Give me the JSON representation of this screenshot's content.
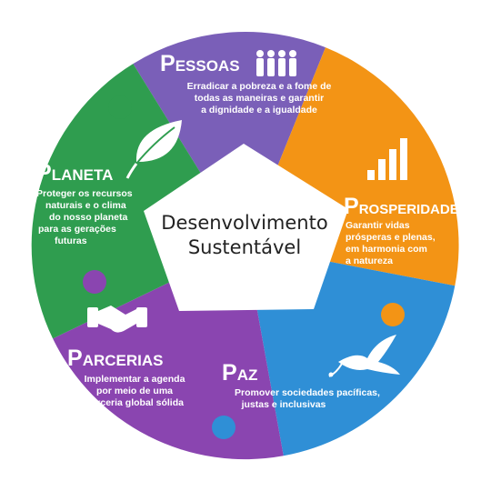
{
  "colors": {
    "pessoas": "#7a5fb8",
    "prosperidade": "#f39415",
    "paz": "#2f8fd6",
    "parcerias": "#8a45b0",
    "planeta": "#2f9d4f",
    "center": "#ffffff",
    "center_text": "#222222"
  },
  "center": {
    "line1": "Desenvolvimento",
    "line2": "Sustentável"
  },
  "segments": {
    "pessoas": {
      "title_initial": "P",
      "title_rest": "ESSOAS",
      "icon": "people-icon",
      "desc": [
        "Erradicar a pobreza e a fome de",
        "todas as maneiras e garantir",
        "a dignidade e a igualdade"
      ]
    },
    "prosperidade": {
      "title_initial": "P",
      "title_rest": "ROSPERIDADE",
      "icon": "bar-chart-icon",
      "desc": [
        "Garantir vidas",
        "prósperas e plenas,",
        "em harmonia com",
        "a natureza"
      ]
    },
    "paz": {
      "title_initial": "P",
      "title_rest": "AZ",
      "icon": "dove-icon",
      "desc": [
        "Promover sociedades pacíficas,",
        "justas e inclusivas"
      ]
    },
    "parcerias": {
      "title_initial": "P",
      "title_rest": "ARCERIAS",
      "icon": "handshake-icon",
      "desc": [
        "Implementar a agenda",
        "por meio de uma",
        "parceria global sólida"
      ]
    },
    "planeta": {
      "title_initial": "P",
      "title_rest": "LANETA",
      "icon": "leaf-icon",
      "desc": [
        "Proteger os recursos",
        "naturais e o clima",
        "do nosso planeta",
        "para as gerações",
        "futuras"
      ]
    }
  }
}
